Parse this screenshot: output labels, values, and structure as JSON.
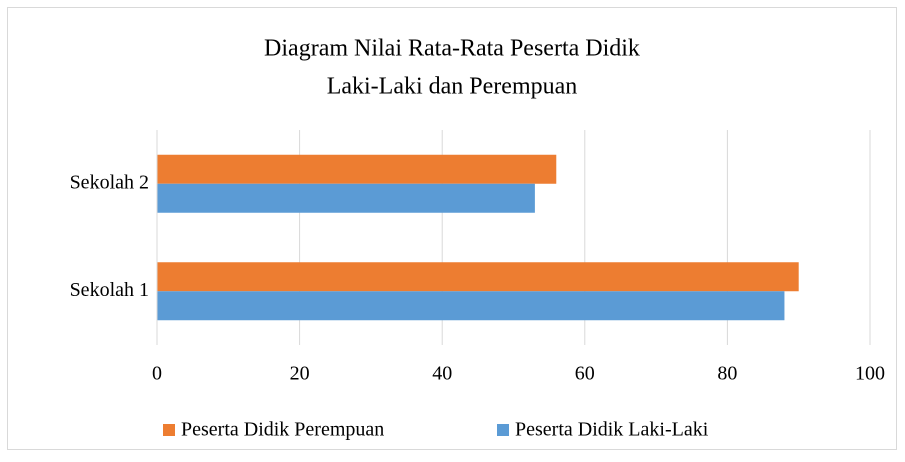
{
  "chart_data": {
    "type": "barh",
    "title": [
      "Diagram Nilai Rata-Rata Peserta Didik",
      "Laki-Laki dan Perempuan"
    ],
    "categories": [
      "Sekolah 1",
      "Sekolah 2"
    ],
    "series": [
      {
        "name": "Peserta Didik Perempuan",
        "color": "#ED7D31",
        "values": [
          90,
          56
        ]
      },
      {
        "name": "Peserta Didik Laki-Laki",
        "color": "#5B9BD5",
        "values": [
          88,
          53
        ]
      }
    ],
    "xlim": [
      0,
      100
    ],
    "xticks": [
      0,
      20,
      40,
      60,
      80,
      100
    ],
    "grid": true,
    "legend": "bottom"
  }
}
